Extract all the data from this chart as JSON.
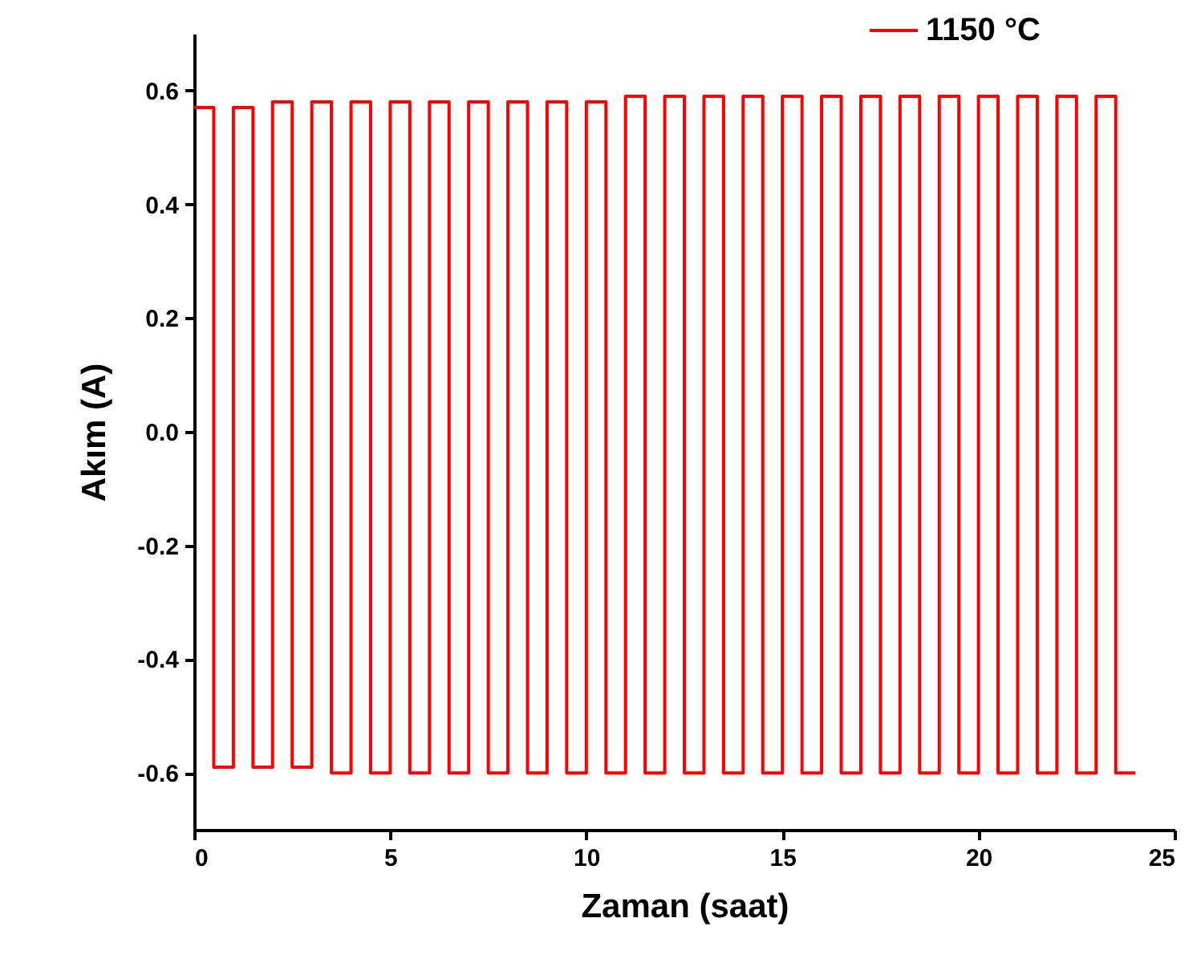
{
  "chart_data": {
    "type": "step",
    "xlabel": "Zaman (saat)",
    "ylabel": "Akım (A)",
    "x": [
      0,
      0.5,
      1,
      1.5,
      2,
      2.5,
      3,
      3.5,
      4,
      4.5,
      5,
      5.5,
      6,
      6.5,
      7,
      7.5,
      8,
      8.5,
      9,
      9.5,
      10,
      10.5,
      11,
      11.5,
      12,
      12.5,
      13,
      13.5,
      14,
      14.5,
      15,
      15.5,
      16,
      16.5,
      17,
      17.5,
      18,
      18.5,
      19,
      19.5,
      20,
      20.5,
      21,
      21.5,
      22,
      22.5,
      23,
      23.5,
      24
    ],
    "series": [
      {
        "name": "1150 °C",
        "color": "#ff0000",
        "values": [
          0.57,
          -0.59,
          0.57,
          -0.59,
          0.58,
          -0.59,
          0.58,
          -0.6,
          0.58,
          -0.6,
          0.58,
          -0.6,
          0.58,
          -0.6,
          0.58,
          -0.6,
          0.58,
          -0.6,
          0.58,
          -0.6,
          0.58,
          -0.6,
          0.59,
          -0.6,
          0.59,
          -0.6,
          0.59,
          -0.6,
          0.59,
          -0.6,
          0.59,
          -0.6,
          0.59,
          -0.6,
          0.59,
          -0.6,
          0.59,
          -0.6,
          0.59,
          -0.6,
          0.59,
          -0.6,
          0.59,
          -0.6,
          0.59,
          -0.6,
          0.59,
          -0.6,
          -0.6
        ]
      }
    ],
    "xlim": [
      0,
      25
    ],
    "xticks": [
      0,
      5,
      10,
      15,
      20,
      25
    ],
    "ylim": [
      -0.7,
      0.7
    ],
    "yticks": [
      {
        "value": -0.6,
        "label": "-0.6"
      },
      {
        "value": -0.4,
        "label": "-0.4"
      },
      {
        "value": -0.2,
        "label": "-0.2"
      },
      {
        "value": 0,
        "label": "0.0"
      },
      {
        "value": 0.2,
        "label": "0.2"
      },
      {
        "value": 0.4,
        "label": "0.4"
      },
      {
        "value": 0.6,
        "label": "0.6"
      }
    ],
    "legend": "top right",
    "grid": false
  }
}
